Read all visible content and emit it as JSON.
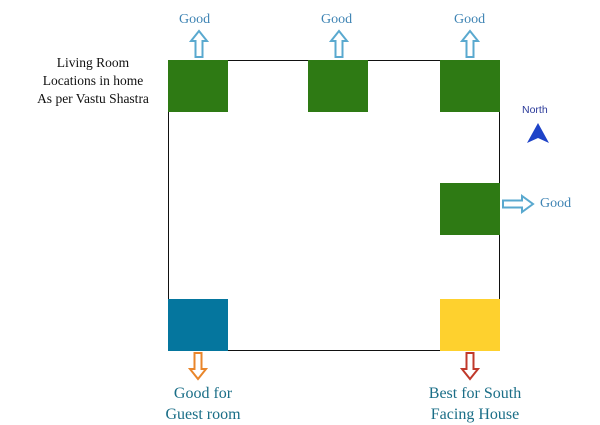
{
  "title": {
    "line1": "Living  Room",
    "line2": "Locations in home",
    "line3": "As per Vastu Shastra"
  },
  "compass": {
    "label": "North",
    "color": "#1e43c8"
  },
  "zones": {
    "top_left": {
      "label": "Good",
      "color": "#2e7a14",
      "arrow": "up",
      "arrow_color": "#5aa9cf"
    },
    "top_center": {
      "label": "Good",
      "color": "#2e7a14",
      "arrow": "up",
      "arrow_color": "#5aa9cf"
    },
    "top_right": {
      "label": "Good",
      "color": "#2e7a14",
      "arrow": "up",
      "arrow_color": "#5aa9cf"
    },
    "middle_right": {
      "label": "Good",
      "color": "#2e7a14",
      "arrow": "right",
      "arrow_color": "#5aa9cf"
    },
    "bottom_left": {
      "line1": "Good for",
      "line2": "Guest room",
      "color": "#05769e",
      "arrow": "down",
      "arrow_color": "#e9862b"
    },
    "bottom_right": {
      "line1": "Best for South",
      "line2": "Facing House",
      "color": "#fed12e",
      "arrow": "down",
      "arrow_color": "#c0392b"
    }
  }
}
